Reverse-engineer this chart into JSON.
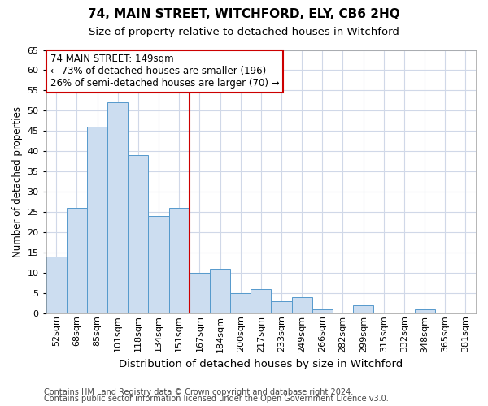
{
  "title1": "74, MAIN STREET, WITCHFORD, ELY, CB6 2HQ",
  "title2": "Size of property relative to detached houses in Witchford",
  "xlabel": "Distribution of detached houses by size in Witchford",
  "ylabel": "Number of detached properties",
  "categories": [
    "52sqm",
    "68sqm",
    "85sqm",
    "101sqm",
    "118sqm",
    "134sqm",
    "151sqm",
    "167sqm",
    "184sqm",
    "200sqm",
    "217sqm",
    "233sqm",
    "249sqm",
    "266sqm",
    "282sqm",
    "299sqm",
    "315sqm",
    "332sqm",
    "348sqm",
    "365sqm",
    "381sqm"
  ],
  "values": [
    14,
    26,
    46,
    52,
    39,
    24,
    26,
    10,
    11,
    5,
    6,
    3,
    4,
    1,
    0,
    2,
    0,
    0,
    1,
    0,
    0
  ],
  "bar_color": "#ccddf0",
  "bar_edge_color": "#5599cc",
  "background_color": "#ffffff",
  "grid_color": "#d0d8e8",
  "annotation_line1": "74 MAIN STREET: 149sqm",
  "annotation_line2": "← 73% of detached houses are smaller (196)",
  "annotation_line3": "26% of semi-detached houses are larger (70) →",
  "vline_color": "#cc0000",
  "vline_pos": 6.5,
  "ylim": [
    0,
    65
  ],
  "yticks": [
    0,
    5,
    10,
    15,
    20,
    25,
    30,
    35,
    40,
    45,
    50,
    55,
    60,
    65
  ],
  "footer1": "Contains HM Land Registry data © Crown copyright and database right 2024.",
  "footer2": "Contains public sector information licensed under the Open Government Licence v3.0.",
  "title1_fontsize": 11,
  "title2_fontsize": 9.5,
  "ylabel_fontsize": 8.5,
  "xlabel_fontsize": 9.5,
  "tick_fontsize": 8,
  "ann_fontsize": 8.5,
  "footer_fontsize": 7
}
